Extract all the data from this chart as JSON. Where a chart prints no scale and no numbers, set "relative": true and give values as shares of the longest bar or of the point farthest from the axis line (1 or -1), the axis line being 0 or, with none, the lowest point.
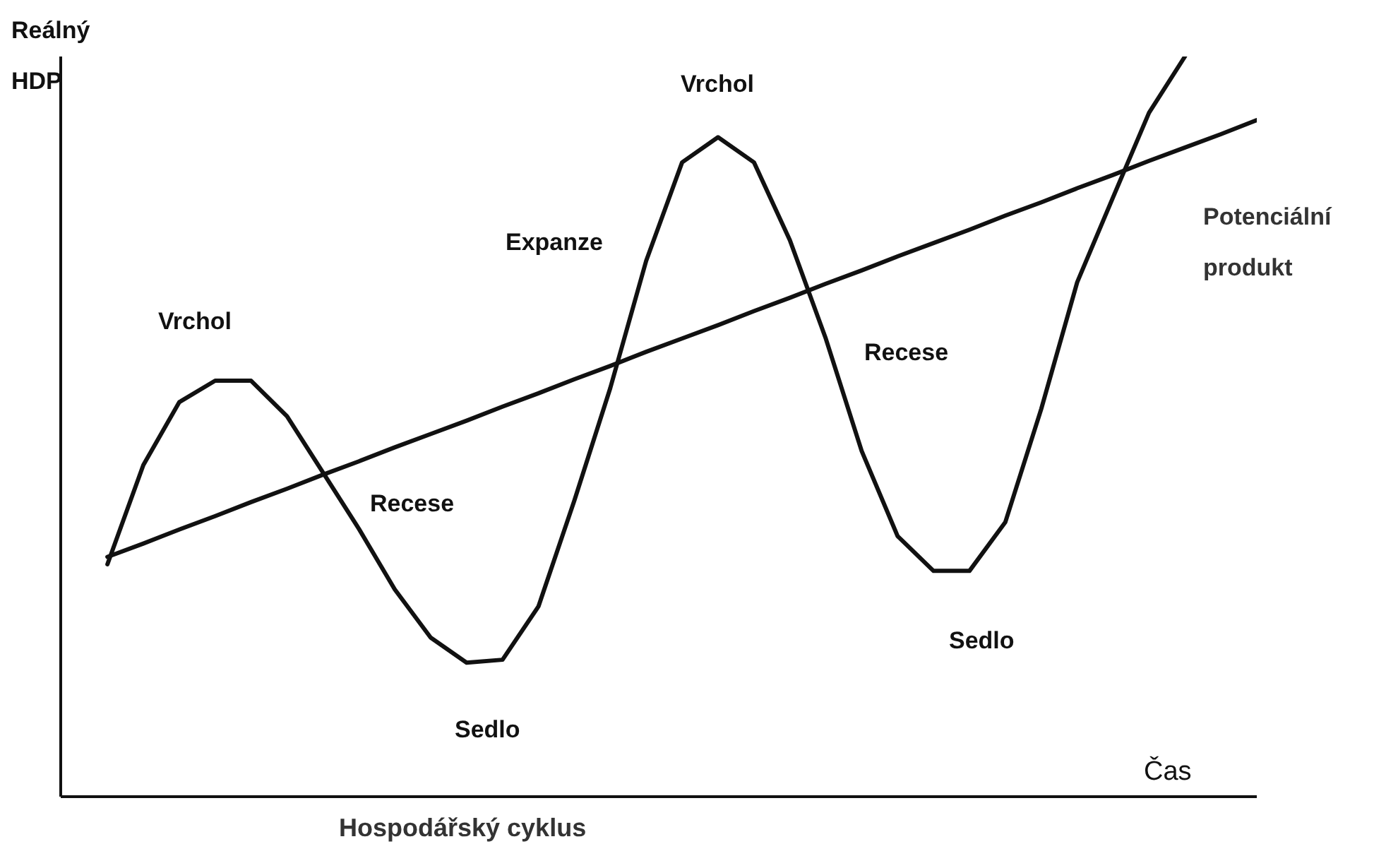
{
  "chart_data": {
    "type": "line",
    "relative": true,
    "title": "Hospodářský cyklus",
    "xlabel": "Čas",
    "ylabel": "Reálný HDP",
    "categories": [
      null,
      null,
      null,
      null,
      null,
      null,
      null,
      null,
      null,
      null,
      null,
      null,
      null,
      null,
      null,
      null,
      null,
      null,
      null,
      null,
      null,
      null,
      null,
      null,
      null,
      null,
      null,
      null,
      null,
      null,
      null,
      null,
      null
    ],
    "series": [
      {
        "color": "#111111",
        "values": [
          0.314,
          0.448,
          0.533,
          0.562,
          0.562,
          0.514,
          0.438,
          0.362,
          0.28,
          0.215,
          0.181,
          0.185,
          0.257,
          0.4,
          0.552,
          0.724,
          0.857,
          0.891,
          0.857,
          0.752,
          0.619,
          0.467,
          0.352,
          0.305,
          0.305,
          0.371,
          0.524,
          0.695,
          0.81,
          0.924,
          1,
          null,
          null
        ]
      },
      {
        "name": "Potenciální produkt",
        "color": "#111111",
        "values": [
          0.324,
          0.342,
          0.361,
          0.379,
          0.398,
          0.416,
          0.435,
          0.453,
          0.472,
          0.49,
          0.508,
          0.527,
          0.545,
          0.564,
          0.582,
          0.601,
          0.619,
          0.637,
          0.656,
          0.674,
          0.693,
          0.711,
          0.73,
          0.748,
          0.766,
          0.785,
          0.803,
          0.822,
          0.84,
          0.859,
          0.877,
          0.895,
          0.914
        ]
      }
    ],
    "annotations": [
      "Vrchol",
      "Vrchol",
      "Expanze",
      "Recese",
      "Recese",
      "Sedlo",
      "Sedlo"
    ]
  }
}
